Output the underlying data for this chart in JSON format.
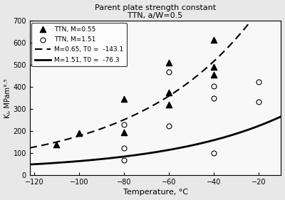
{
  "title_line1": "Parent plate strength constant",
  "title_line2": "TTN, a/W=0.5",
  "xlabel": "Temperature, °C",
  "ylabel": "Kⱼ, MPam°·⁵",
  "xlim": [
    -122,
    -10
  ],
  "ylim": [
    0,
    700
  ],
  "xticks": [
    -120,
    -100,
    -80,
    -60,
    -40,
    -20
  ],
  "yticks": [
    0,
    100,
    200,
    300,
    400,
    500,
    600,
    700
  ],
  "scatter_M055": {
    "x": [
      -110,
      -100,
      -80,
      -80,
      -60,
      -60,
      -60,
      -40,
      -40,
      -40
    ],
    "y": [
      140,
      190,
      345,
      195,
      510,
      375,
      320,
      615,
      490,
      455
    ],
    "marker": "^",
    "color": "black",
    "label": "TTN, M=0.55",
    "size": 35
  },
  "scatter_M151": {
    "x": [
      -80,
      -80,
      -80,
      -60,
      -60,
      -40,
      -40,
      -40,
      -20,
      -20
    ],
    "y": [
      125,
      68,
      230,
      470,
      225,
      350,
      100,
      405,
      425,
      335
    ],
    "marker": "o",
    "color": "black",
    "facecolor": "white",
    "label": "TTN, M=1.51",
    "size": 25
  },
  "curve_M065": {
    "T0": -143.1,
    "label": "M=0.65, T0 =  -143.1",
    "linestyle": "--",
    "color": "black",
    "linewidth": 1.5
  },
  "curve_M151": {
    "T0": -76.3,
    "label": "M=1.51, T0 =  -76.3",
    "linestyle": "-",
    "color": "black",
    "linewidth": 2.0
  },
  "fig_facecolor": "#e8e8e8",
  "ax_facecolor": "#f8f8f8",
  "legend_loc": "upper left"
}
